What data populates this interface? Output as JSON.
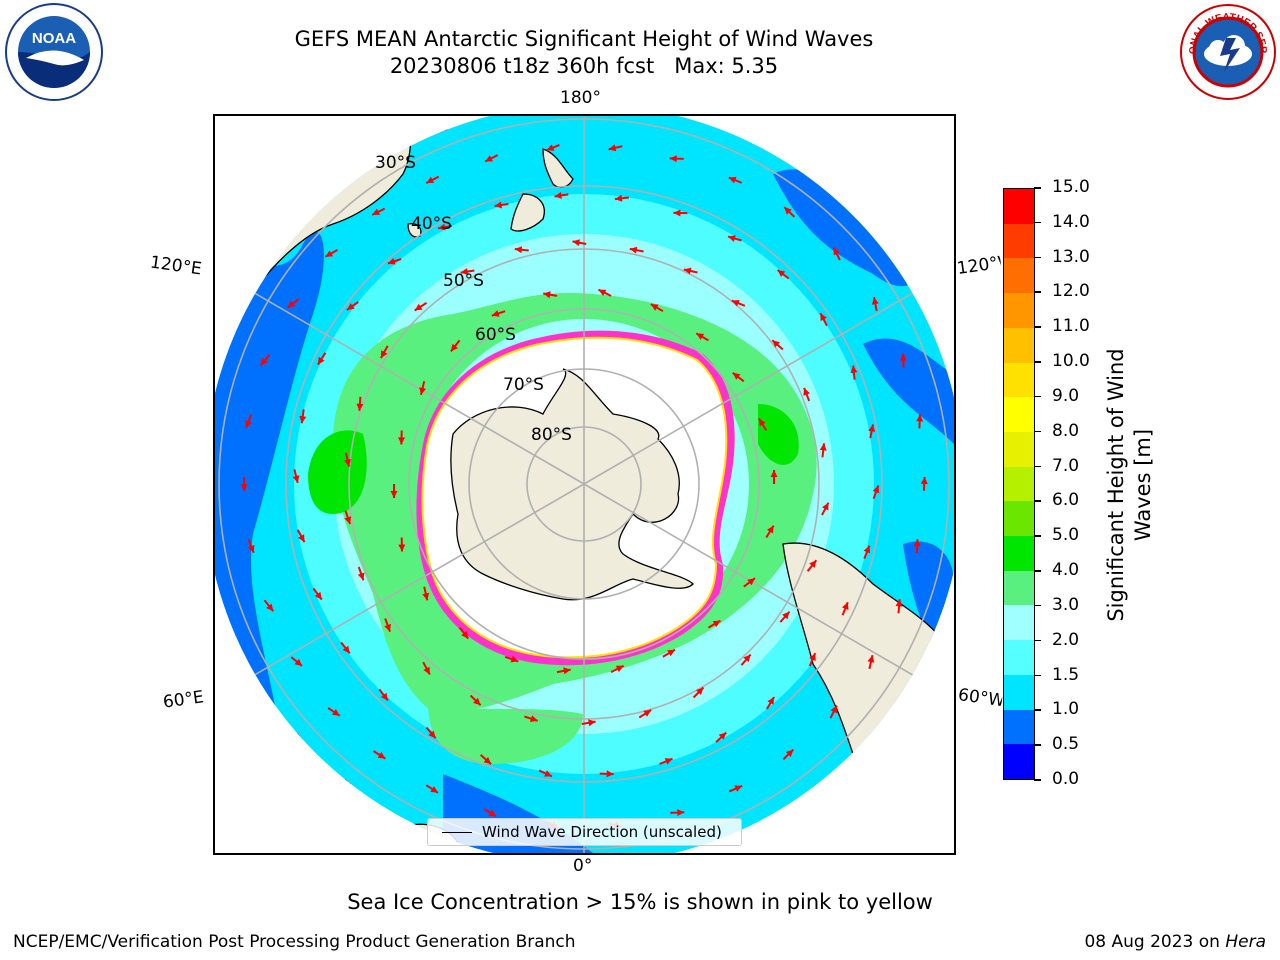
{
  "header": {
    "title_line1": "GEFS MEAN Antarctic Significant Height of Wind Waves",
    "title_line2": "20230806 t18z 360h fcst   Max: 5.35"
  },
  "logos": {
    "left": {
      "name": "noaa-logo",
      "text": "NOAA",
      "ring_text": "NATIONAL OCEANIC AND ATMOSPHERIC ADMINISTRATION · U.S. DEPARTMENT OF COMMERCE"
    },
    "right": {
      "name": "national-weather-service-logo",
      "ring_text": "NATIONAL WEATHER SERVICE"
    }
  },
  "map": {
    "projection": "south-polar-stereographic",
    "longitude_labels": {
      "top": "180°",
      "bottom": "0°",
      "upper_left": "120°E",
      "upper_right": "120°W",
      "lower_left": "60°E",
      "lower_right": "60°W"
    },
    "latitude_labels": [
      "30°S",
      "40°S",
      "50°S",
      "60°S",
      "70°S",
      "80°S"
    ],
    "colors": {
      "land": "#efecdc",
      "gridline": "#b0b0b0",
      "arrow": "#ff0000",
      "sea_ice": "#ff33cc"
    }
  },
  "legend": {
    "label": "Wind Wave Direction (unscaled)"
  },
  "colorbar": {
    "title": "Significant Height of Wind Waves [m]",
    "ticks": [
      "0.0",
      "0.5",
      "1.0",
      "1.5",
      "2.0",
      "3.0",
      "4.0",
      "5.0",
      "6.0",
      "7.0",
      "8.0",
      "9.0",
      "10.0",
      "11.0",
      "12.0",
      "13.0",
      "14.0",
      "15.0"
    ],
    "colors": [
      "#0000ff",
      "#0070ff",
      "#00e5ff",
      "#55ffff",
      "#a0ffff",
      "#5af080",
      "#00e600",
      "#6ae600",
      "#b4f000",
      "#e6f000",
      "#ffff00",
      "#ffe100",
      "#ffc000",
      "#ff9600",
      "#ff6e00",
      "#ff3c00",
      "#ff0000"
    ]
  },
  "note": "Sea Ice Concentration > 15% is shown in pink to yellow",
  "footer": {
    "left": "NCEP/EMC/Verification Post Processing Product Generation Branch",
    "right_prefix": "08 Aug 2023 on ",
    "right_emph": "Hera"
  }
}
